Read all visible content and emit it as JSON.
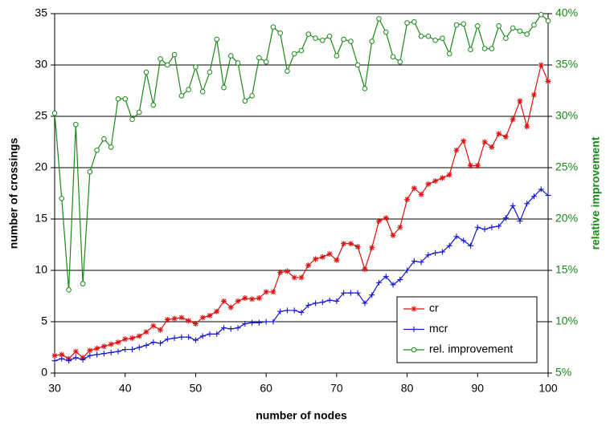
{
  "chart_data": {
    "type": "line",
    "x_label": "number of nodes",
    "y_label": "number of crossings",
    "y2_label": "relative improvement",
    "x": [
      30,
      31,
      32,
      33,
      34,
      35,
      36,
      37,
      38,
      39,
      40,
      41,
      42,
      43,
      44,
      45,
      46,
      47,
      48,
      49,
      50,
      51,
      52,
      53,
      54,
      55,
      56,
      57,
      58,
      59,
      60,
      61,
      62,
      63,
      64,
      65,
      66,
      67,
      68,
      69,
      70,
      71,
      72,
      73,
      74,
      75,
      76,
      77,
      78,
      79,
      80,
      81,
      82,
      83,
      84,
      85,
      86,
      87,
      88,
      89,
      90,
      91,
      92,
      93,
      94,
      95,
      96,
      97,
      98,
      99,
      100
    ],
    "series": [
      {
        "name": "cr",
        "color": "#e01010",
        "marker": "star",
        "values": [
          1.7,
          1.8,
          1.4,
          2.1,
          1.5,
          2.2,
          2.4,
          2.6,
          2.8,
          3.0,
          3.3,
          3.4,
          3.6,
          4.0,
          4.6,
          4.2,
          5.2,
          5.3,
          5.4,
          5.1,
          4.8,
          5.4,
          5.6,
          6.0,
          7.0,
          6.4,
          7.0,
          7.3,
          7.2,
          7.3,
          7.9,
          7.9,
          9.8,
          9.9,
          9.3,
          9.3,
          10.5,
          11.1,
          11.3,
          11.6,
          11.0,
          12.6,
          12.6,
          12.3,
          10.1,
          12.2,
          14.8,
          15.1,
          13.4,
          14.2,
          16.9,
          18.0,
          17.4,
          18.4,
          18.7,
          19.0,
          19.3,
          21.7,
          22.6,
          20.2,
          20.2,
          22.5,
          22.0,
          23.3,
          23.0,
          24.7,
          26.5,
          24.0,
          27.1,
          30.0,
          28.4
        ]
      },
      {
        "name": "mcr",
        "color": "#1515d8",
        "marker": "plus",
        "values": [
          1.2,
          1.4,
          1.2,
          1.5,
          1.3,
          1.7,
          1.8,
          1.9,
          2.0,
          2.1,
          2.3,
          2.3,
          2.5,
          2.7,
          3.0,
          2.9,
          3.3,
          3.4,
          3.5,
          3.5,
          3.2,
          3.6,
          3.8,
          3.8,
          4.4,
          4.3,
          4.4,
          4.8,
          4.9,
          4.9,
          5.0,
          5.0,
          6.0,
          6.1,
          6.1,
          5.9,
          6.6,
          6.8,
          6.9,
          7.1,
          7.0,
          7.8,
          7.8,
          7.8,
          6.8,
          7.6,
          8.8,
          9.4,
          8.6,
          9.1,
          10.0,
          10.9,
          10.8,
          11.5,
          11.7,
          11.8,
          12.4,
          13.3,
          12.9,
          12.4,
          14.2,
          14.0,
          14.2,
          14.3,
          15.1,
          16.3,
          14.8,
          16.5,
          17.2,
          17.9,
          17.3
        ]
      },
      {
        "name": "rel. improvement",
        "color": "#1a8a1a",
        "marker": "circle",
        "axis": "y2",
        "values": [
          30.3,
          22.0,
          13.1,
          29.2,
          13.7,
          24.6,
          26.7,
          27.8,
          27.0,
          31.7,
          31.7,
          29.7,
          30.4,
          34.3,
          31.1,
          35.6,
          35.0,
          36.0,
          32.0,
          32.6,
          34.8,
          32.4,
          34.3,
          37.5,
          32.8,
          35.9,
          35.2,
          31.5,
          32.0,
          35.7,
          35.3,
          38.7,
          38.1,
          34.4,
          36.1,
          36.4,
          38.0,
          37.6,
          37.4,
          37.8,
          35.9,
          37.5,
          37.3,
          35.0,
          32.7,
          37.3,
          39.5,
          38.2,
          35.8,
          35.3,
          39.1,
          39.2,
          37.8,
          37.8,
          37.4,
          37.6,
          36.1,
          38.9,
          39.0,
          36.5,
          38.8,
          36.6,
          36.6,
          38.8,
          37.6,
          38.6,
          38.3,
          38.0,
          38.9,
          39.9,
          39.3
        ]
      }
    ],
    "xlim": [
      30,
      100
    ],
    "xticks": [
      30,
      40,
      50,
      60,
      70,
      80,
      90,
      100
    ],
    "ylim": [
      0,
      35
    ],
    "yticks": [
      0,
      5,
      10,
      15,
      20,
      25,
      30,
      35
    ],
    "y2lim": [
      5,
      40
    ],
    "y2ticks": [
      {
        "value": 5,
        "label": "5%"
      },
      {
        "value": 10,
        "label": "10%"
      },
      {
        "value": 15,
        "label": "15%"
      },
      {
        "value": 20,
        "label": "20%"
      },
      {
        "value": 25,
        "label": "25%"
      },
      {
        "value": 30,
        "label": "30%"
      },
      {
        "value": 35,
        "label": "35%"
      },
      {
        "value": 40,
        "label": "40%"
      }
    ],
    "grid": true,
    "legend": "lower right"
  }
}
